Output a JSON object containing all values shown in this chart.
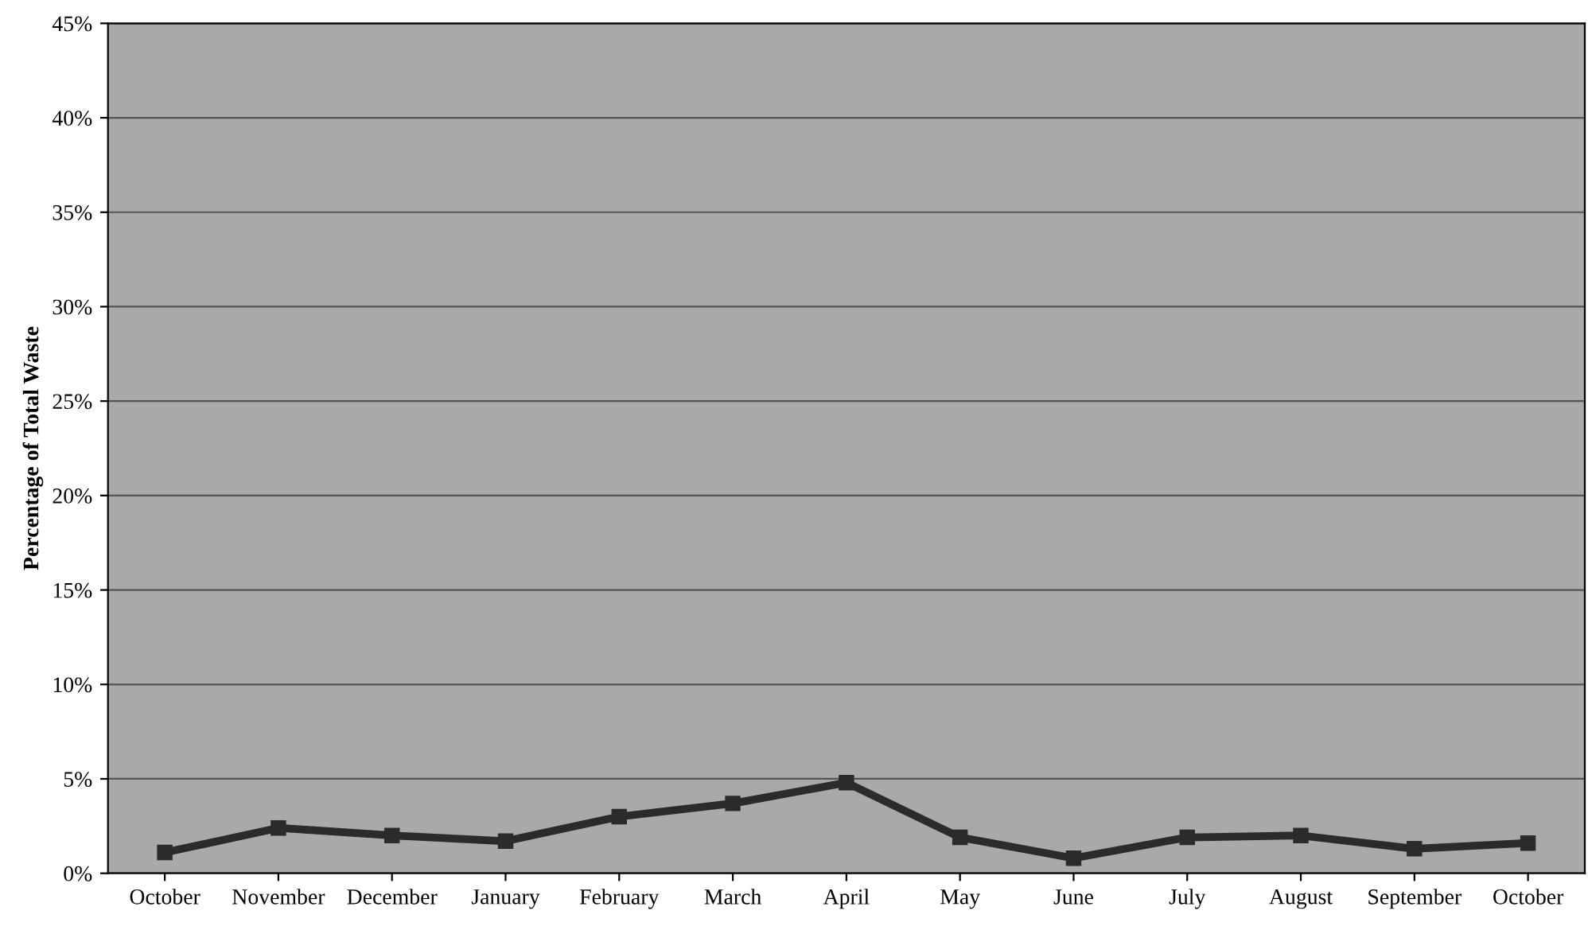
{
  "chart_data": {
    "type": "line",
    "ylabel": "Percentage of Total Waste",
    "categories": [
      "October",
      "November",
      "December",
      "January",
      "February",
      "March",
      "April",
      "May",
      "June",
      "July",
      "August",
      "September",
      "October"
    ],
    "series": [
      {
        "color": "#2b2b2b",
        "values": [
          1.1,
          2.4,
          2.0,
          1.7,
          3.0,
          3.7,
          4.8,
          1.9,
          0.8,
          1.9,
          2.0,
          1.3,
          1.6
        ]
      }
    ],
    "ylim": [
      0,
      45
    ],
    "yticks": [
      {
        "value": 0,
        "label": "0%"
      },
      {
        "value": 5,
        "label": "5%"
      },
      {
        "value": 10,
        "label": "10%"
      },
      {
        "value": 15,
        "label": "15%"
      },
      {
        "value": 20,
        "label": "20%"
      },
      {
        "value": 25,
        "label": "25%"
      },
      {
        "value": 30,
        "label": "30%"
      },
      {
        "value": 35,
        "label": "35%"
      },
      {
        "value": 40,
        "label": "40%"
      },
      {
        "value": 45,
        "label": "45%"
      }
    ],
    "grid": "y",
    "marker": "square",
    "line_style": "solid"
  }
}
